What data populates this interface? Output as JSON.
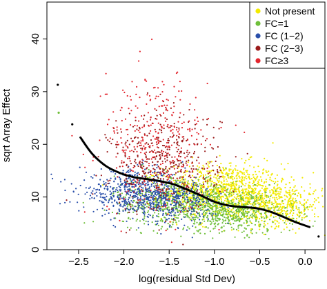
{
  "chart_data": {
    "type": "scatter",
    "xlabel": "log(residual Std Dev)",
    "ylabel": "sqrt Array Effect",
    "xlim": [
      -2.85,
      0.22
    ],
    "ylim": [
      0,
      47
    ],
    "x_ticks": [
      -2.5,
      -2.0,
      -1.5,
      -1.0,
      -0.5,
      0.0
    ],
    "x_tick_labels": [
      "−2.5",
      "−2.0",
      "−1.5",
      "−1.0",
      "−0.5",
      "0.0"
    ],
    "y_ticks": [
      0,
      10,
      20,
      30,
      40
    ],
    "y_tick_labels": [
      "0",
      "10",
      "20",
      "30",
      "40"
    ],
    "grid": false,
    "legend_position": "top-right",
    "series": [
      {
        "name": "Not present",
        "color": "#f2ea00",
        "clusters": [
          {
            "x": -0.9,
            "y": 11.0,
            "spread_x": 0.33,
            "spread_y": 2.7,
            "count": 1050
          },
          {
            "x": -0.3,
            "y": 8.5,
            "spread_x": 0.25,
            "spread_y": 2.0,
            "count": 450
          }
        ]
      },
      {
        "name": "FC=1",
        "color": "#6fbf3a",
        "clusters": [
          {
            "x": -1.4,
            "y": 9.5,
            "spread_x": 0.35,
            "spread_y": 2.4,
            "count": 650
          },
          {
            "x": -0.8,
            "y": 7.0,
            "spread_x": 0.35,
            "spread_y": 1.9,
            "count": 500
          }
        ]
      },
      {
        "name": "FC (1−2)",
        "color": "#2a4faa",
        "clusters": [
          {
            "x": -1.9,
            "y": 11.0,
            "spread_x": 0.3,
            "spread_y": 2.0,
            "count": 500
          },
          {
            "x": -1.5,
            "y": 9.0,
            "spread_x": 0.25,
            "spread_y": 1.9,
            "count": 300
          }
        ]
      },
      {
        "name": "FC (2−3)",
        "color": "#9b1b1b",
        "clusters": [
          {
            "x": -1.55,
            "y": 16.5,
            "spread_x": 0.3,
            "spread_y": 4.8,
            "count": 450
          }
        ]
      },
      {
        "name": "FC≥3",
        "color": "#e3262e",
        "clusters": [
          {
            "x": -1.65,
            "y": 20.0,
            "spread_x": 0.3,
            "spread_y": 6.5,
            "count": 350
          }
        ]
      }
    ],
    "outliers": [
      {
        "x": -2.73,
        "y": 31.3,
        "color": "#000000"
      },
      {
        "x": -2.57,
        "y": 23.8,
        "color": "#000000"
      },
      {
        "x": 0.15,
        "y": 2.5,
        "color": "#000000"
      },
      {
        "x": -2.72,
        "y": 26.0,
        "color": "#6fbf3a"
      }
    ],
    "fitted_curve": {
      "name": "fitted curve",
      "color": "#000000",
      "x": [
        -2.48,
        -2.35,
        -2.2,
        -2.05,
        -1.9,
        -1.75,
        -1.6,
        -1.45,
        -1.3,
        -1.15,
        -1.0,
        -0.85,
        -0.7,
        -0.55,
        -0.4,
        -0.25,
        -0.1,
        0.05
      ],
      "y": [
        21.3,
        18.2,
        15.9,
        14.6,
        13.8,
        13.4,
        13.0,
        12.4,
        11.4,
        10.3,
        9.1,
        8.4,
        8.1,
        7.9,
        7.3,
        6.3,
        5.2,
        4.3
      ]
    }
  }
}
